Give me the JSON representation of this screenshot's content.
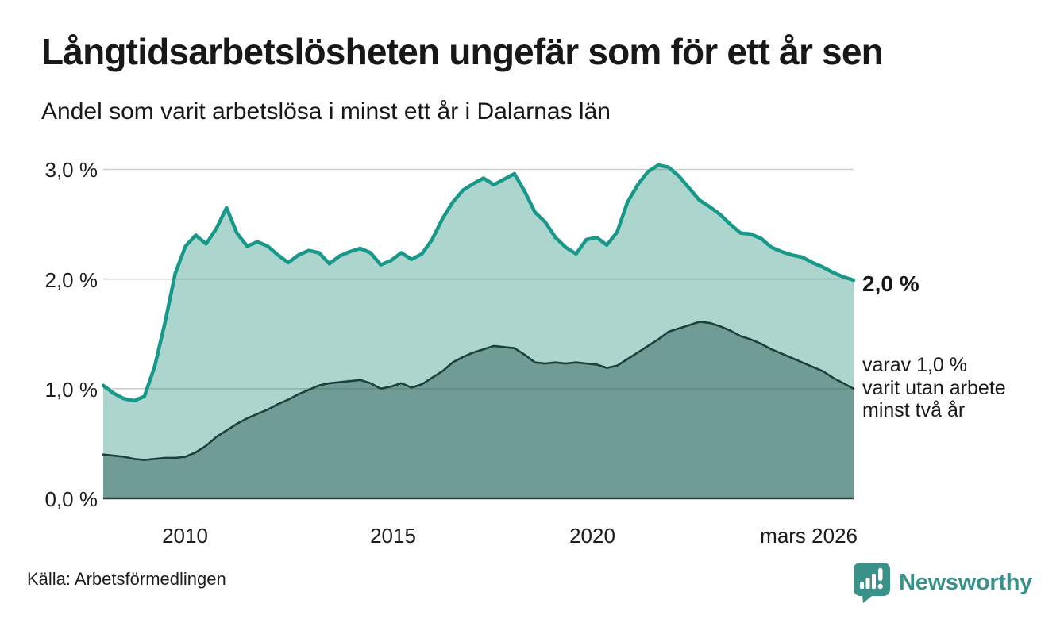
{
  "header": {
    "title": "Långtidsarbetslösheten ungefär som för ett år sen",
    "subtitle": "Andel som varit arbetslösa i minst ett år i Dalarnas län"
  },
  "footer": {
    "source": "Källa: Arbetsförmedlingen",
    "brand": "Newsworthy"
  },
  "colors": {
    "accent_teal": "#17988a",
    "light_fill": "#abd5cd",
    "dark_fill": "#6f9d95",
    "dark_line": "#1e403c",
    "grid": "#dadada",
    "baseline": "#32403d",
    "brand_teal": "#3a9189",
    "text": "#181818"
  },
  "chart_data": {
    "type": "area",
    "title": "Långtidsarbetslösheten ungefär som för ett år sen",
    "subtitle": "Andel som varit arbetslösa i minst ett år i Dalarnas län",
    "unit": "%",
    "grid": true,
    "legend_position": "none",
    "ylim": [
      0,
      3.2
    ],
    "xlim": [
      2008,
      2026.25
    ],
    "ytick_values": [
      3,
      2,
      1,
      0
    ],
    "ytick_labels": [
      "3,0 %",
      "2,0 %",
      "1,0 %",
      "0,0 %"
    ],
    "xtick_values": [
      2010,
      2015,
      2020,
      2026.17
    ],
    "xtick_labels": [
      "2010",
      "2015",
      "2020",
      "mars 2026"
    ],
    "annotations": {
      "total_end": "2,0 %",
      "two_years_end": "varav 1,0 %\nvarit utan arbete\nminst två år"
    },
    "x": [
      2008,
      2008.25,
      2008.5,
      2008.75,
      2009,
      2009.25,
      2009.5,
      2009.75,
      2010,
      2010.25,
      2010.5,
      2010.75,
      2011,
      2011.25,
      2011.5,
      2011.75,
      2012,
      2012.25,
      2012.5,
      2012.75,
      2013,
      2013.25,
      2013.5,
      2013.75,
      2014,
      2014.25,
      2014.5,
      2014.75,
      2015,
      2015.25,
      2015.5,
      2015.75,
      2016,
      2016.25,
      2016.5,
      2016.75,
      2017,
      2017.25,
      2017.5,
      2017.75,
      2018,
      2018.25,
      2018.5,
      2018.75,
      2019,
      2019.25,
      2019.5,
      2019.75,
      2020,
      2020.25,
      2020.5,
      2020.75,
      2021,
      2021.25,
      2021.5,
      2021.75,
      2022,
      2022.25,
      2022.5,
      2022.75,
      2023,
      2023.25,
      2023.5,
      2023.75,
      2024,
      2024.25,
      2024.5,
      2024.75,
      2025,
      2025.25,
      2025.5,
      2025.75,
      2026,
      2026.25
    ],
    "series": [
      {
        "name": "Arbetslösa minst ett år",
        "line_color": "#17988a",
        "fill_color": "#abd5cd",
        "line_width": 4.5,
        "values": [
          1.03,
          0.96,
          0.91,
          0.89,
          0.93,
          1.2,
          1.6,
          2.05,
          2.3,
          2.4,
          2.32,
          2.46,
          2.65,
          2.42,
          2.3,
          2.34,
          2.3,
          2.22,
          2.15,
          2.22,
          2.26,
          2.24,
          2.14,
          2.21,
          2.25,
          2.28,
          2.24,
          2.13,
          2.17,
          2.24,
          2.18,
          2.23,
          2.36,
          2.55,
          2.7,
          2.81,
          2.87,
          2.92,
          2.86,
          2.91,
          2.96,
          2.8,
          2.61,
          2.52,
          2.38,
          2.29,
          2.23,
          2.36,
          2.38,
          2.31,
          2.43,
          2.7,
          2.86,
          2.98,
          3.04,
          3.02,
          2.94,
          2.83,
          2.72,
          2.66,
          2.59,
          2.5,
          2.42,
          2.41,
          2.37,
          2.29,
          2.25,
          2.22,
          2.2,
          2.15,
          2.11,
          2.06,
          2.02,
          1.99
        ]
      },
      {
        "name": "Arbetslösa minst två år",
        "line_color": "#1e403c",
        "fill_color": "#6f9d95",
        "line_width": 2.6,
        "values": [
          0.4,
          0.39,
          0.38,
          0.36,
          0.35,
          0.36,
          0.37,
          0.37,
          0.38,
          0.42,
          0.48,
          0.56,
          0.62,
          0.68,
          0.73,
          0.77,
          0.81,
          0.86,
          0.9,
          0.95,
          0.99,
          1.03,
          1.05,
          1.06,
          1.07,
          1.08,
          1.05,
          1.0,
          1.02,
          1.05,
          1.01,
          1.04,
          1.1,
          1.16,
          1.24,
          1.29,
          1.33,
          1.36,
          1.39,
          1.38,
          1.37,
          1.31,
          1.24,
          1.23,
          1.24,
          1.23,
          1.24,
          1.23,
          1.22,
          1.19,
          1.21,
          1.27,
          1.33,
          1.39,
          1.45,
          1.52,
          1.55,
          1.58,
          1.61,
          1.6,
          1.57,
          1.53,
          1.48,
          1.45,
          1.41,
          1.36,
          1.32,
          1.28,
          1.24,
          1.2,
          1.16,
          1.1,
          1.05,
          1.0
        ]
      }
    ]
  }
}
